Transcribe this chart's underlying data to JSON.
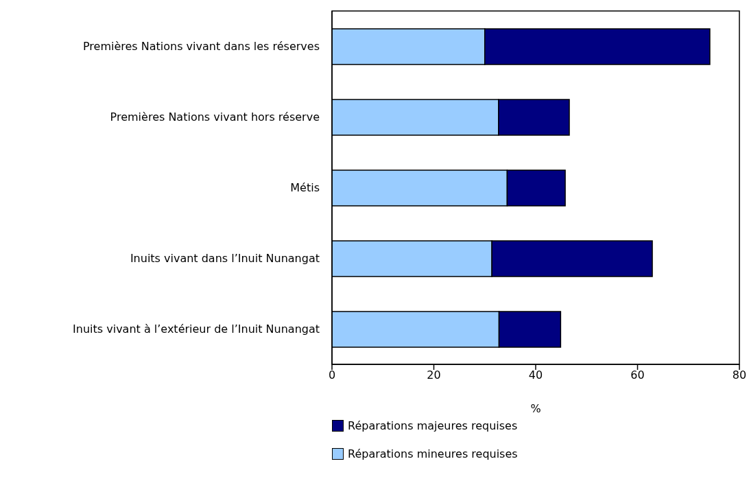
{
  "chart_data": {
    "type": "bar",
    "orientation": "horizontal",
    "stacked": true,
    "categories": [
      "Premières Nations vivant dans les réserves",
      "Premières Nations vivant hors réserve",
      "Métis",
      "Inuits vivant dans l’Inuit Nunangat",
      "Inuits vivant à l’extérieur de l’Inuit Nunangat"
    ],
    "series": [
      {
        "name": "Réparations mineures requises",
        "color": "#99ccff",
        "values": [
          30.0,
          32.7,
          34.4,
          31.4,
          32.8
        ]
      },
      {
        "name": "Réparations majeures requises",
        "color": "#000080",
        "values": [
          44.2,
          13.9,
          11.4,
          31.5,
          12.1
        ]
      }
    ],
    "xlabel": "%",
    "xlim": [
      0,
      80
    ],
    "xticks": [
      0,
      20,
      40,
      60,
      80
    ],
    "grid": false,
    "legend": "bottom"
  }
}
